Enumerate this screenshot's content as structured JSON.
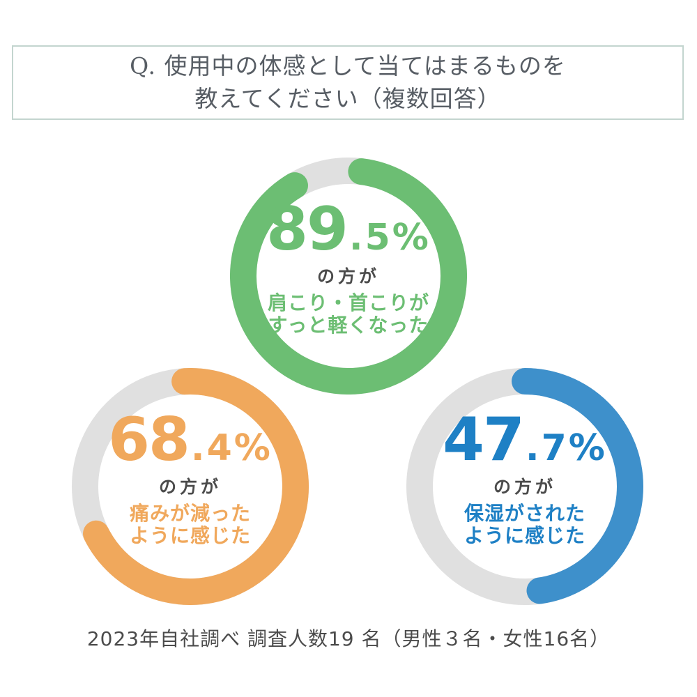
{
  "header": {
    "line1": "Q. 使用中の体感として当てはまるものを",
    "line2": "教えてください（複数回答）"
  },
  "colors": {
    "track": "#e0e0e0",
    "green": "#6cbe73",
    "orange": "#f0a85c",
    "blue": "#3e90cb",
    "sub_text": "#4b4b4b",
    "header_text": "#575d64",
    "header_border": "#c3d5cf",
    "footer_text": "#4b4b4b"
  },
  "charts": [
    {
      "percent": 89.5,
      "display_int": "89",
      "display_frac": ".5%",
      "subject": "の方が",
      "desc_line1": "肩こり・首こりが",
      "desc_line2": "すっと軽くなった",
      "color": "#6cbe73",
      "number_color": "#6cbe73"
    },
    {
      "percent": 68.4,
      "display_int": "68",
      "display_frac": ".4%",
      "subject": "の方が",
      "desc_line1": "痛みが減った",
      "desc_line2": "ように感じた",
      "color": "#f0a85c",
      "number_color": "#f0a85c"
    },
    {
      "percent": 47.7,
      "display_int": "47",
      "display_frac": ".7%",
      "subject": "の方が",
      "desc_line1": "保湿がされた",
      "desc_line2": "ように感じた",
      "color": "#3e90cb",
      "number_color": "#1e80c5"
    }
  ],
  "footer": {
    "text": "2023年自社調べ 調査人数19 名（男性３名・女性16名）"
  },
  "chart_data": {
    "type": "pie",
    "subtype": "donut-multiples",
    "title": "Q. 使用中の体感として当てはまるものを教えてください（複数回答）",
    "multiple_response": true,
    "donuts": [
      {
        "label": "肩こり・首こりがすっと軽くなった",
        "value_percent": 89.5,
        "remainder_percent": 10.5,
        "color": "#6cbe73",
        "track_color": "#e0e0e0",
        "start_angle_deg": 7,
        "direction": "clockwise"
      },
      {
        "label": "痛みが減ったように感じた",
        "value_percent": 68.4,
        "remainder_percent": 31.6,
        "color": "#f0a85c",
        "track_color": "#e0e0e0",
        "start_angle_deg": -3,
        "direction": "clockwise"
      },
      {
        "label": "保湿がされたように感じた",
        "value_percent": 47.7,
        "remainder_percent": 52.3,
        "color": "#3e90cb",
        "track_color": "#e0e0e0",
        "start_angle_deg": 0,
        "direction": "clockwise"
      }
    ],
    "source_note": "2023年自社調べ 調査人数19 名（男性３名・女性16名）"
  }
}
